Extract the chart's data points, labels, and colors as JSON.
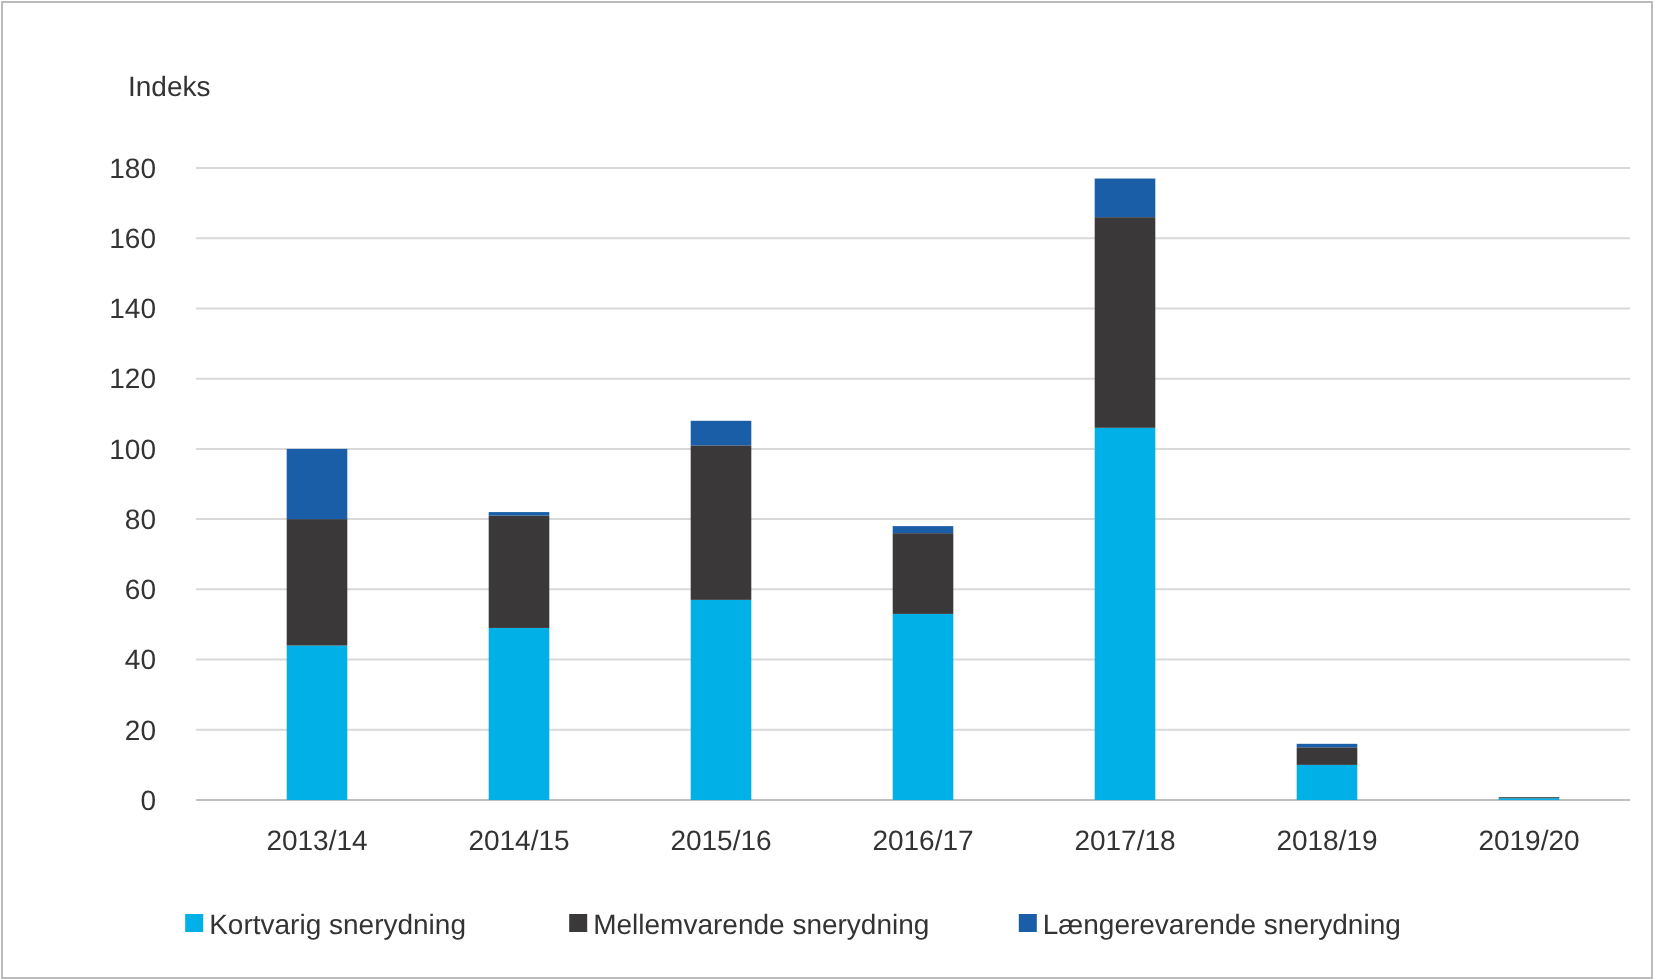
{
  "chart_data": {
    "type": "bar",
    "stacked": true,
    "ylabel": "Indeks",
    "categories": [
      "2013/14",
      "2014/15",
      "2015/16",
      "2016/17",
      "2017/18",
      "2018/19",
      "2019/20"
    ],
    "series": [
      {
        "name": "Kortvarig snerydning",
        "color": "#00b0e6",
        "values": [
          44,
          49,
          57,
          53,
          106,
          10,
          0.5
        ]
      },
      {
        "name": "Mellemvarende snerydning",
        "color": "#3a3838",
        "values": [
          36,
          32,
          44,
          23,
          60,
          5,
          0.3
        ]
      },
      {
        "name": "Længerevarende snerydning",
        "color": "#1a5ea8",
        "values": [
          20,
          1,
          7,
          2,
          11,
          1,
          0
        ]
      }
    ],
    "ylim": [
      0,
      180
    ],
    "yticks": [
      0,
      20,
      40,
      60,
      80,
      100,
      120,
      140,
      160,
      180
    ],
    "grid": "y",
    "legend": "bottom"
  }
}
